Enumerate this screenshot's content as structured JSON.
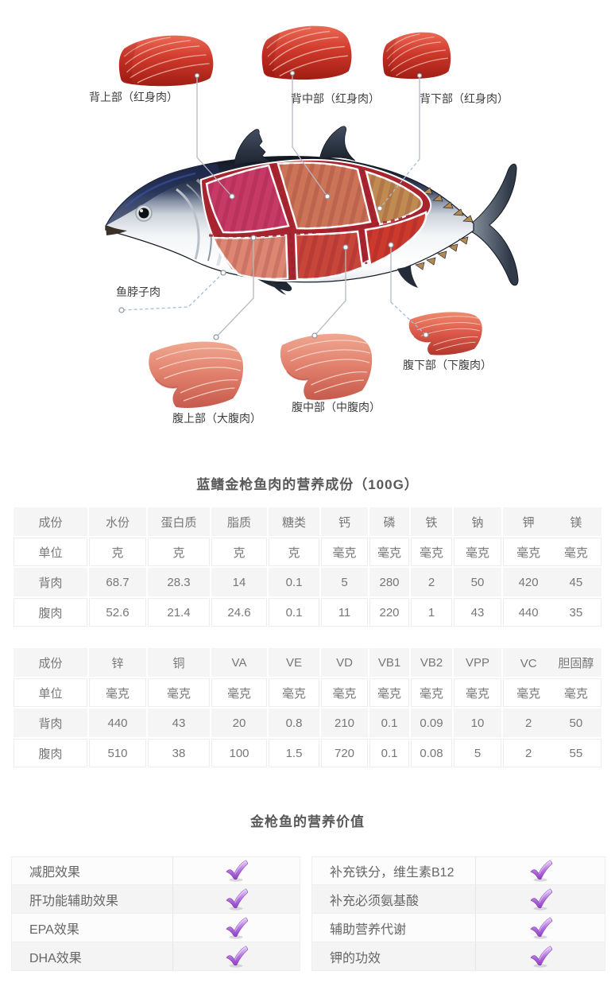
{
  "illustration": {
    "icon": "tuna-fish-cuts-diagram",
    "labels": {
      "back_upper": "背上部（红身肉）",
      "back_mid": "背中部（红身肉）",
      "back_lower": "背下部（红身肉）",
      "neck": "鱼脖子肉",
      "belly_upper": "腹上部（大腹肉）",
      "belly_mid": "腹中部（中腹肉）",
      "belly_lower": "腹下部（下腹肉）"
    },
    "section_colors": {
      "back_upper": "#c73a68",
      "back_mid": "#cd7458",
      "back_lower": "#bf8b51",
      "belly_upper": "#dd8672",
      "belly_mid": "#c8453a",
      "belly_lower": "#cc3a2e"
    }
  },
  "nutrition": {
    "title": "蓝鳍金枪鱼肉的营养成份（100G）",
    "table1": {
      "columns": [
        "成份",
        "水份",
        "蛋白质",
        "脂质",
        "糖类",
        "钙",
        "磷",
        "铁",
        "钠",
        "钾",
        "镁"
      ],
      "rows": [
        [
          "单位",
          "克",
          "克",
          "克",
          "克",
          "毫克",
          "毫克",
          "毫克",
          "毫克",
          "毫克",
          "毫克"
        ],
        [
          "背肉",
          "68.7",
          "28.3",
          "14",
          "0.1",
          "5",
          "280",
          "2",
          "50",
          "420",
          "45"
        ],
        [
          "腹肉",
          "52.6",
          "21.4",
          "24.6",
          "0.1",
          "11",
          "220",
          "1",
          "43",
          "440",
          "35"
        ]
      ]
    },
    "table2": {
      "columns": [
        "成份",
        "锌",
        "铜",
        "VA",
        "VE",
        "VD",
        "VB1",
        "VB2",
        "VPP",
        "VC",
        "胆固醇"
      ],
      "rows": [
        [
          "单位",
          "毫克",
          "毫克",
          "毫克",
          "毫克",
          "毫克",
          "毫克",
          "毫克",
          "毫克",
          "毫克",
          "毫克"
        ],
        [
          "背肉",
          "440",
          "43",
          "20",
          "0.8",
          "210",
          "0.1",
          "0.09",
          "10",
          "2",
          "50"
        ],
        [
          "腹肉",
          "510",
          "38",
          "100",
          "1.5",
          "720",
          "0.1",
          "0.08",
          "5",
          "2",
          "55"
        ]
      ]
    }
  },
  "benefits": {
    "title": "金枪鱼的营养价值",
    "check_icon": "check-icon",
    "check_color": "#9b59c7",
    "left": [
      "减肥效果",
      "肝功能辅助效果",
      "EPA效果",
      "DHA效果"
    ],
    "right": [
      "补充铁分，维生素B12",
      "补充必须氨基酸",
      "辅助营养代谢",
      "钾的功效"
    ]
  }
}
